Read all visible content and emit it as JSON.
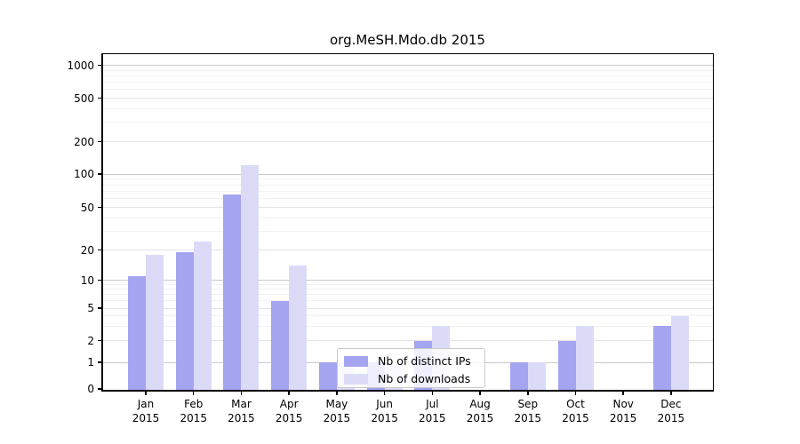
{
  "chart_data": {
    "type": "bar",
    "title": "org.MeSH.Mdo.db 2015",
    "xlabel": "",
    "ylabel": "",
    "categories": [
      "Jan 2015",
      "Feb 2015",
      "Mar 2015",
      "Apr 2015",
      "May 2015",
      "Jun 2015",
      "Jul 2015",
      "Aug 2015",
      "Sep 2015",
      "Oct 2015",
      "Nov 2015",
      "Dec 2015"
    ],
    "series": [
      {
        "name": "Nb of distinct IPs",
        "color": "#a4a4f0",
        "values": [
          11,
          19,
          66,
          6,
          1,
          1,
          2,
          0,
          1,
          2,
          0,
          3
        ]
      },
      {
        "name": "Nb of downloads",
        "color": "#dbdbf8",
        "values": [
          18,
          24,
          120,
          14,
          1,
          1,
          3,
          0,
          1,
          3,
          0,
          4
        ]
      }
    ],
    "y_ticks": [
      0,
      1,
      2,
      5,
      10,
      20,
      50,
      100,
      200,
      500,
      1000
    ],
    "ylim": [
      0,
      1000
    ],
    "y_scale": "log-like",
    "grid": true,
    "legend_position": "inside-bottom-center"
  }
}
